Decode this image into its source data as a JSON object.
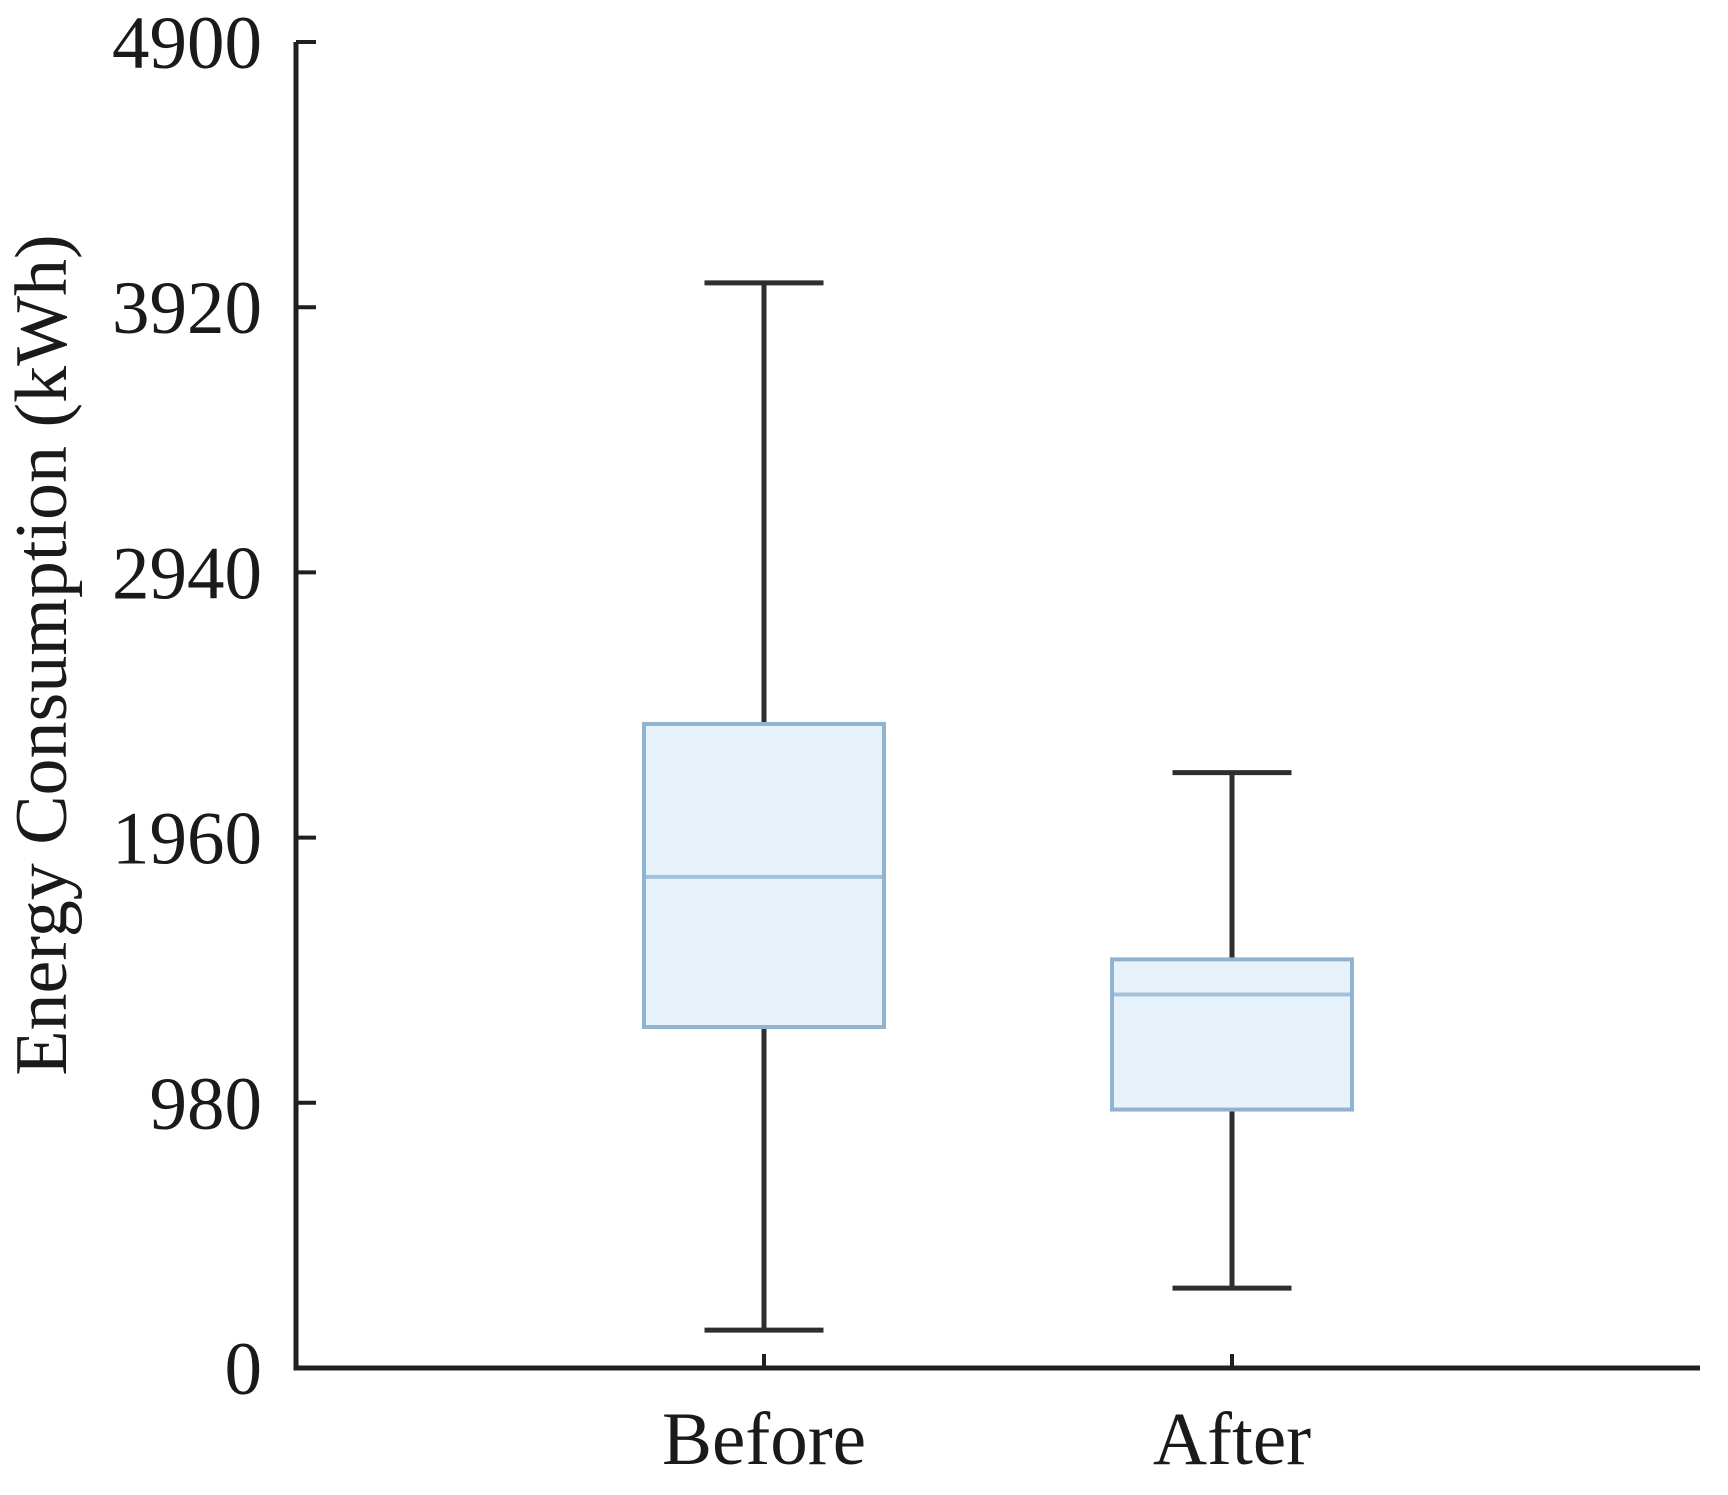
{
  "figure": {
    "background": "#ffffff"
  },
  "chart_data": {
    "type": "boxplot",
    "title": "",
    "xlabel": "",
    "ylabel": "Energy Consumption (kWh)",
    "categories": [
      "Before",
      "After"
    ],
    "y_ticks": [
      0,
      980,
      1960,
      2940,
      3920,
      4900
    ],
    "ylim": [
      0,
      4900
    ],
    "grid": false,
    "legend": null,
    "series": [
      {
        "name": "Before",
        "whisker_low": 140,
        "q1": 1260,
        "median": 1815,
        "q3": 2380,
        "whisker_high": 4010
      },
      {
        "name": "After",
        "whisker_low": 295,
        "q1": 955,
        "median": 1380,
        "q3": 1510,
        "whisker_high": 2200
      }
    ],
    "colors": {
      "box_fill": "#e8f2fb",
      "box_border": "#8fb3d1",
      "median_line": "#a4c1d9",
      "whisker": "#2e2e2e",
      "axis": "#1f1f1f",
      "text": "#1a1a1a"
    }
  }
}
